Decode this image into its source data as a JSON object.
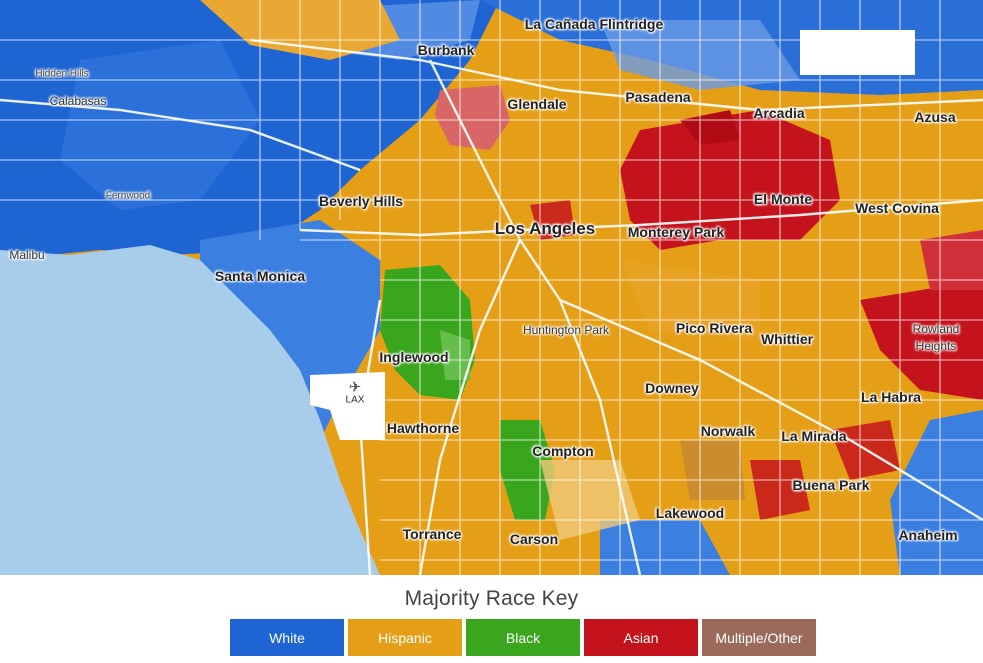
{
  "colors": {
    "white": "#1e64d2",
    "hispanic": "#e59f17",
    "black": "#3aa61e",
    "asian": "#c4131c",
    "multiple": "#9c6a5a",
    "ocean": "#a7cdea"
  },
  "places": [
    {
      "name": "La Cañada Flintridge",
      "size": "med"
    },
    {
      "name": "Burbank",
      "size": "med"
    },
    {
      "name": "Hidden Hills",
      "size": "tiny"
    },
    {
      "name": "Calabasas",
      "size": "small"
    },
    {
      "name": "Glendale",
      "size": "med"
    },
    {
      "name": "Pasadena",
      "size": "med"
    },
    {
      "name": "Arcadia",
      "size": "med"
    },
    {
      "name": "Azusa",
      "size": "med"
    },
    {
      "name": "Fernwood",
      "size": "tiny"
    },
    {
      "name": "Beverly Hills",
      "size": "med"
    },
    {
      "name": "El Monte",
      "size": "med"
    },
    {
      "name": "West Covina",
      "size": "med"
    },
    {
      "name": "Los Angeles",
      "size": "big"
    },
    {
      "name": "Monterey Park",
      "size": "med"
    },
    {
      "name": "Malibu",
      "size": "small"
    },
    {
      "name": "Santa Monica",
      "size": "med"
    },
    {
      "name": "Huntington Park",
      "size": "small"
    },
    {
      "name": "Pico Rivera",
      "size": "med"
    },
    {
      "name": "Whittier",
      "size": "med"
    },
    {
      "name": "Rowland",
      "size": "small"
    },
    {
      "name": "Heights",
      "size": "small"
    },
    {
      "name": "Inglewood",
      "size": "med"
    },
    {
      "name": "Downey",
      "size": "med"
    },
    {
      "name": "La Habra",
      "size": "med"
    },
    {
      "name": "Hawthorne",
      "size": "med"
    },
    {
      "name": "Norwalk",
      "size": "med"
    },
    {
      "name": "La Mirada",
      "size": "med"
    },
    {
      "name": "Compton",
      "size": "med"
    },
    {
      "name": "Buena Park",
      "size": "med"
    },
    {
      "name": "Lakewood",
      "size": "med"
    },
    {
      "name": "Torrance",
      "size": "med"
    },
    {
      "name": "Carson",
      "size": "med"
    },
    {
      "name": "Anaheim",
      "size": "med"
    }
  ],
  "airport": {
    "label": "LAX",
    "icon": "airplane-icon"
  },
  "legend": {
    "title": "Majority Race Key",
    "items": [
      {
        "label": "White",
        "color": "#1e64d2"
      },
      {
        "label": "Hispanic",
        "color": "#e59f17"
      },
      {
        "label": "Black",
        "color": "#3aa61e"
      },
      {
        "label": "Asian",
        "color": "#c4131c"
      },
      {
        "label": "Multiple/Other",
        "color": "#9c6a5a"
      }
    ]
  }
}
